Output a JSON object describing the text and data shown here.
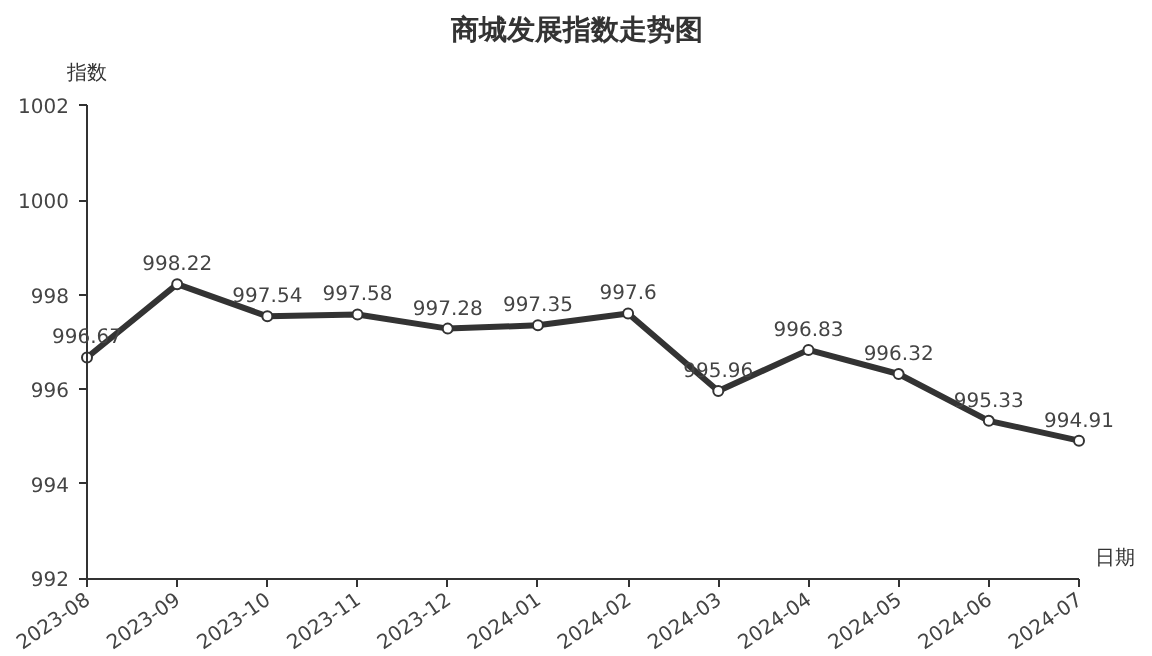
{
  "chart_data": {
    "type": "line",
    "title": "商城发展指数走势图",
    "xlabel": "日期",
    "ylabel": "指数",
    "categories": [
      "2023-08",
      "2023-09",
      "2023-10",
      "2023-11",
      "2023-12",
      "2024-01",
      "2024-02",
      "2024-03",
      "2024-04",
      "2024-05",
      "2024-06",
      "2024-07"
    ],
    "series": [
      {
        "color": "#333333",
        "values": [
          996.67,
          998.22,
          997.54,
          997.58,
          997.28,
          997.35,
          997.6,
          995.96,
          996.83,
          996.32,
          995.33,
          994.91
        ]
      }
    ],
    "ylim": [
      992,
      1002
    ],
    "yticks": [
      992,
      994,
      996,
      998,
      1000,
      1002
    ],
    "grid": false,
    "legend": false,
    "marker": "circle",
    "line_style": "solid",
    "data_labels": true
  }
}
